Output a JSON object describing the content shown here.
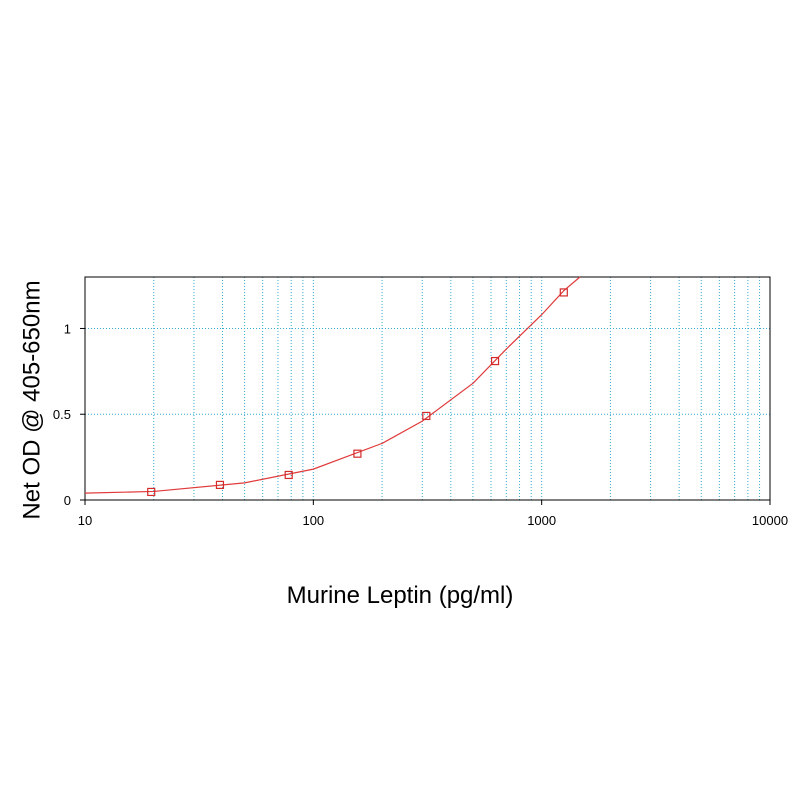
{
  "chart_data": {
    "type": "scatter",
    "x_label": "Murine Leptin (pg/ml)",
    "y_label": "Net OD @ 405-650nm",
    "log_x": true,
    "grid": true,
    "xlim": [
      10,
      10000
    ],
    "xticks": [
      10,
      100,
      1000,
      10000
    ],
    "ylim": [
      0,
      1.3
    ],
    "yticks": [
      0,
      0.5,
      1
    ],
    "series": [
      {
        "color": "#d42a2a",
        "x": [
          19.5,
          39,
          78,
          156,
          312.5,
          625,
          1250
        ],
        "values": [
          0.047,
          0.088,
          0.146,
          0.27,
          0.49,
          0.81,
          1.21
        ]
      }
    ],
    "curve": {
      "color": "#e03a3a",
      "x": [
        10,
        20,
        50,
        100,
        200,
        300,
        500,
        700,
        1000,
        1250,
        1470
      ],
      "values": [
        0.04,
        0.05,
        0.1,
        0.18,
        0.33,
        0.46,
        0.68,
        0.88,
        1.08,
        1.22,
        1.3
      ]
    }
  }
}
